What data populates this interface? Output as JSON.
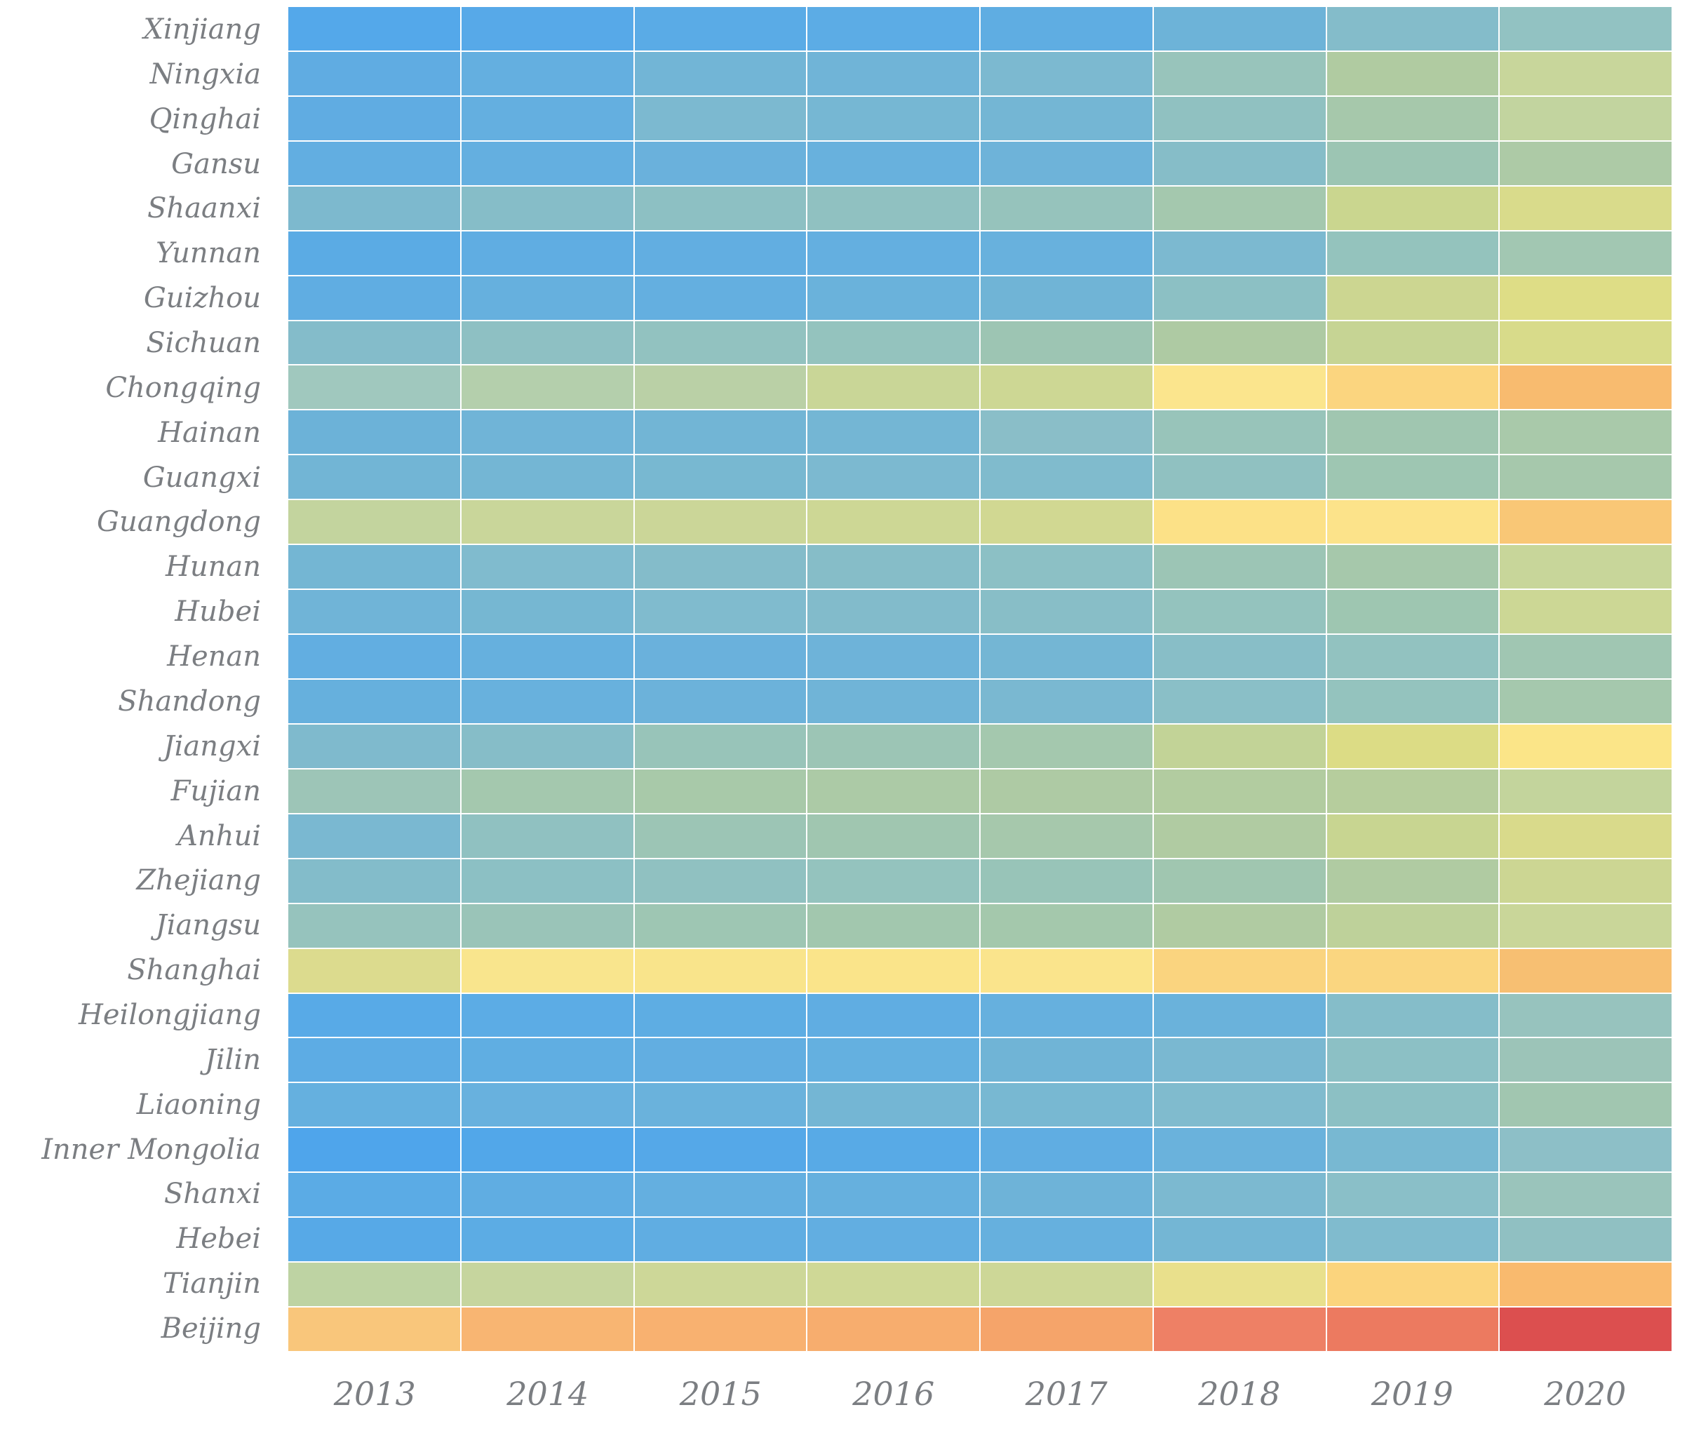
{
  "figure": {
    "background": "#ffffff",
    "label_color": "#7b7e82"
  },
  "chart_data": {
    "type": "heatmap",
    "title": "",
    "xlabel": "",
    "ylabel": "",
    "legend": "none",
    "columns": [
      "2013",
      "2014",
      "2015",
      "2016",
      "2017",
      "2018",
      "2019",
      "2020"
    ],
    "rows": [
      "Xinjiang",
      "Ningxia",
      "Qinghai",
      "Gansu",
      "Shaanxi",
      "Yunnan",
      "Guizhou",
      "Sichuan",
      "Chongqing",
      "Hainan",
      "Guangxi",
      "Guangdong",
      "Hunan",
      "Hubei",
      "Henan",
      "Shandong",
      "Jiangxi",
      "Fujian",
      "Anhui",
      "Zhejiang",
      "Jiangsu",
      "Shanghai",
      "Heilongjiang",
      "Jilin",
      "Liaoning",
      "Inner Mongolia",
      "Shanxi",
      "Hebei",
      "Tianjin",
      "Beijing"
    ],
    "color_scale": {
      "low": "#4fa5eb",
      "mid": "#fbe58d",
      "high": "#de4c4c"
    },
    "cell_colors": [
      [
        "#54a8ea",
        "#57a9e8",
        "#5aabe6",
        "#5cace5",
        "#5fade2",
        "#6db3d8",
        "#84bcca",
        "#92c2c2"
      ],
      [
        "#60ace2",
        "#64afe0",
        "#72b5d6",
        "#70b4d7",
        "#7cb9d0",
        "#98c4bb",
        "#b0cba1",
        "#c8d69b"
      ],
      [
        "#60ace2",
        "#64afe0",
        "#7cb9d0",
        "#76b7d3",
        "#74b6d4",
        "#90c1c1",
        "#a6c8ab",
        "#c2d49f"
      ],
      [
        "#62aee1",
        "#64afe0",
        "#6ab1dc",
        "#68b1dd",
        "#6eb3d9",
        "#86bdc8",
        "#9cc5b3",
        "#adcaa6"
      ],
      [
        "#7db9ce",
        "#86bdc8",
        "#8dc0c3",
        "#90c1c1",
        "#96c3bc",
        "#a4c8ae",
        "#cad68f",
        "#d9db8b"
      ],
      [
        "#5babe4",
        "#60ade2",
        "#62aee1",
        "#64afe0",
        "#68b1dd",
        "#7cb9d0",
        "#94c3bd",
        "#a2c7b2"
      ],
      [
        "#60ade2",
        "#66b0de",
        "#64afe0",
        "#6ab2db",
        "#70b4d6",
        "#8cc0c4",
        "#ccd691",
        "#dedd86"
      ],
      [
        "#84bcca",
        "#8ec0c3",
        "#92c2c0",
        "#94c3be",
        "#9dc5b3",
        "#aecaa3",
        "#c6d494",
        "#d8db8a"
      ],
      [
        "#a0c8be",
        "#b4cfac",
        "#bad0a6",
        "#c9d697",
        "#cdd794",
        "#fbe58d",
        "#fbd57f",
        "#f8bb6f"
      ],
      [
        "#6cb2d8",
        "#70b4d7",
        "#72b5d5",
        "#74b6d4",
        "#8abec8",
        "#98c4ba",
        "#a0c6b0",
        "#a9c9aa"
      ],
      [
        "#72b5d5",
        "#74b6d4",
        "#78b8d1",
        "#7cb9d0",
        "#80bbcd",
        "#90c1c1",
        "#9ec6b2",
        "#a6c8ac"
      ],
      [
        "#c3d49e",
        "#c9d69a",
        "#cbd698",
        "#cdd795",
        "#d1d892",
        "#fce187",
        "#fce38a",
        "#f9c776"
      ],
      [
        "#74b6d3",
        "#80bbce",
        "#84bcca",
        "#86bdc8",
        "#8cc0c5",
        "#9cc5b5",
        "#a6c8ab",
        "#c8d69a"
      ],
      [
        "#70b4d7",
        "#76b7d2",
        "#80bbce",
        "#82bbcb",
        "#88bec7",
        "#94c3be",
        "#9ec6b1",
        "#ccd795"
      ],
      [
        "#62aee1",
        "#66b0de",
        "#6ab1dc",
        "#6eb3d9",
        "#74b6d4",
        "#88bec7",
        "#92c2c0",
        "#a0c6b2"
      ],
      [
        "#66b0dd",
        "#68b1dd",
        "#6cb2da",
        "#70b4d7",
        "#7ab8d1",
        "#8abfc7",
        "#94c3be",
        "#a5c8ad"
      ],
      [
        "#7fbacd",
        "#86bdc8",
        "#98c4b9",
        "#9cc5b5",
        "#a4c8ae",
        "#c2d397",
        "#dcdc85",
        "#fbe588"
      ],
      [
        "#9dc5b7",
        "#a4c8ae",
        "#a8c9a9",
        "#accaa6",
        "#aecaa4",
        "#b2cca0",
        "#b6cd9d",
        "#c3d49c"
      ],
      [
        "#7ab8d1",
        "#90c1c1",
        "#9cc5b5",
        "#a0c6b0",
        "#a6c8ac",
        "#b0cba2",
        "#c8d591",
        "#d9da8b"
      ],
      [
        "#83bcca",
        "#8cc0c4",
        "#90c1c1",
        "#94c3be",
        "#98c4b8",
        "#a0c6b0",
        "#b0cba2",
        "#ccd693"
      ],
      [
        "#96c3bd",
        "#9ac4b8",
        "#9ec6b3",
        "#a2c7ae",
        "#a4c8ac",
        "#b0cba2",
        "#bed19a",
        "#c9d699"
      ],
      [
        "#dcdb8e",
        "#f9e58d",
        "#f9e48b",
        "#fae48a",
        "#fae48c",
        "#fad47f",
        "#fad680",
        "#f7bf72"
      ],
      [
        "#58aae7",
        "#5cace5",
        "#5eade3",
        "#60ade2",
        "#66b0de",
        "#6ab2db",
        "#85bdc9",
        "#97c3be"
      ],
      [
        "#5dace4",
        "#60aee2",
        "#62aee1",
        "#64b0e0",
        "#70b4d6",
        "#7ab8d1",
        "#8cc0c5",
        "#9cc4b8"
      ],
      [
        "#65b0df",
        "#68b1de",
        "#6ab2dc",
        "#74b6d4",
        "#78b8d2",
        "#80bbce",
        "#8cc0c4",
        "#a1c6b0"
      ],
      [
        "#4fa5eb",
        "#52a7e9",
        "#55a8e8",
        "#58aae6",
        "#60ade2",
        "#6ab2dc",
        "#78b8d2",
        "#8dbfc7"
      ],
      [
        "#5babe5",
        "#60ade2",
        "#64afe0",
        "#66b0de",
        "#6eb3d8",
        "#7cb9d0",
        "#8abfc8",
        "#9ac4bb"
      ],
      [
        "#57a9e7",
        "#5cace4",
        "#60ade2",
        "#62aee1",
        "#66b0de",
        "#74b6d4",
        "#80bbce",
        "#90c0c2"
      ],
      [
        "#bed3a3",
        "#c6d59e",
        "#cdd798",
        "#cfd896",
        "#cdd797",
        "#e9e08c",
        "#fbd47d",
        "#f9ba6e"
      ],
      [
        "#f9c67b",
        "#f8b572",
        "#f8b170",
        "#f7ad6e",
        "#f5a46a",
        "#ee8065",
        "#ec7a60",
        "#dc4f4f"
      ]
    ]
  }
}
